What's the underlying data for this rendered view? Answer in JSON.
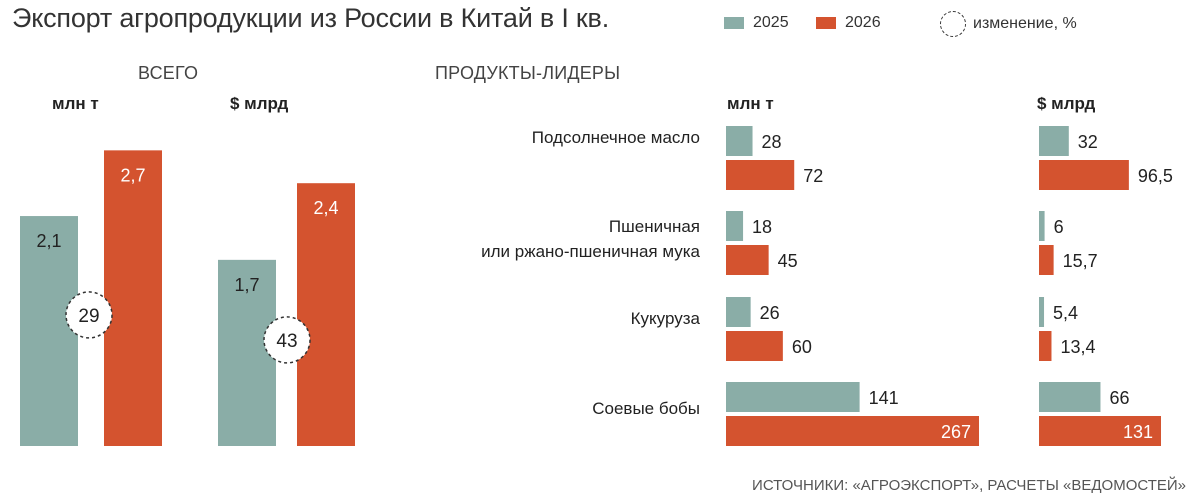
{
  "title": "Экспорт агропродукции из России в Китай в I кв.",
  "legend": {
    "y2025": "2025",
    "y2026": "2026",
    "change": "изменение, %"
  },
  "colors": {
    "y2025": "#8aada7",
    "y2026": "#d4532f"
  },
  "totals": {
    "section_title": "ВСЕГО",
    "unit_volume": "млн т",
    "unit_value": "$ млрд"
  },
  "leaders": {
    "section_title": "ПРОДУКТЫ-ЛИДЕРЫ",
    "unit_volume": "млн т",
    "unit_value": "$ млрд",
    "products": [
      {
        "label_lines": [
          "Подсолнечное масло"
        ]
      },
      {
        "label_lines": [
          "Пшеничная",
          "или ржано-пшеничная мука"
        ]
      },
      {
        "label_lines": [
          "Кукуруза"
        ]
      },
      {
        "label_lines": [
          "Соевые бобы"
        ]
      }
    ]
  },
  "source": "ИСТОЧНИКИ: «АГРОЭКСПОРТ», РАСЧЕТЫ «ВЕДОМОСТЕЙ»",
  "chart_data": [
    {
      "type": "bar",
      "title": "ВСЕГО",
      "ylabel": "млн т",
      "categories": [
        "млн т"
      ],
      "series": [
        {
          "name": "2025",
          "values": [
            2.1
          ],
          "labels": [
            "2,1"
          ]
        },
        {
          "name": "2026",
          "values": [
            2.7
          ],
          "labels": [
            "2,7"
          ]
        }
      ],
      "change_percent": 29,
      "ylim": [
        0,
        3.0
      ]
    },
    {
      "type": "bar",
      "title": "ВСЕГО",
      "ylabel": "$ млрд",
      "categories": [
        "$ млрд"
      ],
      "series": [
        {
          "name": "2025",
          "values": [
            1.7
          ],
          "labels": [
            "1,7"
          ]
        },
        {
          "name": "2026",
          "values": [
            2.4
          ],
          "labels": [
            "2,4"
          ]
        }
      ],
      "change_percent": 43,
      "ylim": [
        0,
        3.0
      ]
    },
    {
      "type": "bar",
      "orientation": "horizontal",
      "title": "ПРОДУКТЫ-ЛИДЕРЫ",
      "xlabel": "млн т",
      "categories": [
        "Подсолнечное масло",
        "Пшеничная или ржано-пшеничная мука",
        "Кукуруза",
        "Соевые бобы"
      ],
      "series": [
        {
          "name": "2025",
          "values": [
            28,
            18,
            26,
            141
          ],
          "labels": [
            "28",
            "18",
            "26",
            "141"
          ]
        },
        {
          "name": "2026",
          "values": [
            72,
            45,
            60,
            267
          ],
          "labels": [
            "72",
            "45",
            "60",
            "267"
          ]
        }
      ],
      "xlim": [
        0,
        267
      ]
    },
    {
      "type": "bar",
      "orientation": "horizontal",
      "title": "ПРОДУКТЫ-ЛИДЕРЫ",
      "xlabel": "$ млрд",
      "categories": [
        "Подсолнечное масло",
        "Пшеничная или ржано-пшеничная мука",
        "Кукуруза",
        "Соевые бобы"
      ],
      "series": [
        {
          "name": "2025",
          "values": [
            32,
            6,
            5.4,
            66
          ],
          "labels": [
            "32",
            "6",
            "5,4",
            "66"
          ]
        },
        {
          "name": "2026",
          "values": [
            96.5,
            15.7,
            13.4,
            131
          ],
          "labels": [
            "96,5",
            "15,7",
            "13,4",
            "131"
          ]
        }
      ],
      "xlim": [
        0,
        131
      ]
    }
  ]
}
